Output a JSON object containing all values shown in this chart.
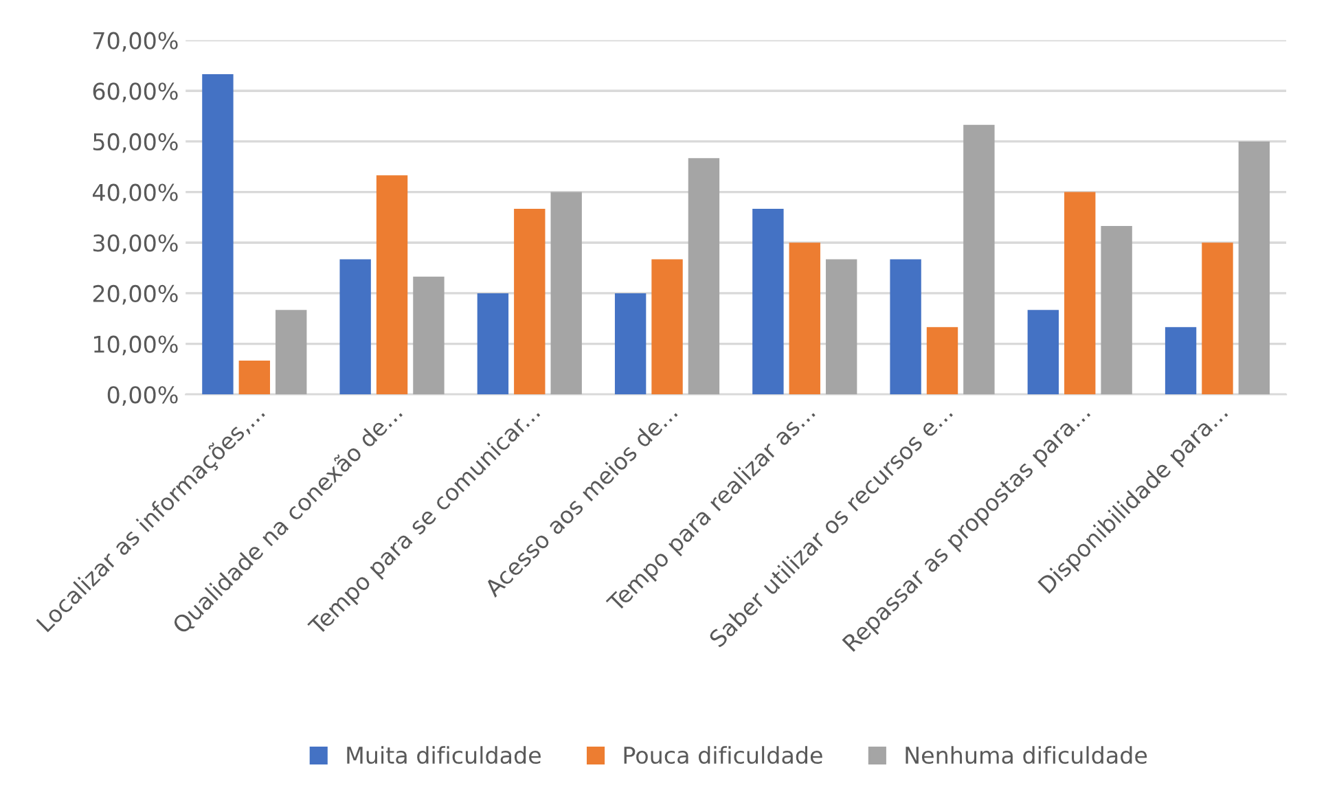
{
  "chart_data": {
    "type": "bar",
    "categories": [
      "Localizar as informações,...",
      "Qualidade na conexão de...",
      "Tempo para se comunicar...",
      "Acesso aos meios de...",
      "Tempo para realizar as...",
      "Saber utilizar os recursos e...",
      "Repassar as propostas para...",
      "Disponibilidade para..."
    ],
    "series": [
      {
        "name": "Muita dificuldade",
        "color": "#4472c4",
        "values": [
          63.3,
          26.7,
          20.0,
          20.0,
          36.7,
          26.7,
          16.7,
          13.3
        ]
      },
      {
        "name": "Pouca dificuldade",
        "color": "#ed7d31",
        "values": [
          6.7,
          43.3,
          36.7,
          26.7,
          30.0,
          13.3,
          40.0,
          30.0
        ]
      },
      {
        "name": "Nenhuma dificuldade",
        "color": "#a5a5a5",
        "values": [
          16.7,
          23.3,
          40.0,
          46.7,
          26.7,
          53.3,
          33.3,
          50.0
        ]
      }
    ],
    "ylim": [
      0,
      70
    ],
    "yticks": [
      {
        "value": 0,
        "label": "0,00%"
      },
      {
        "value": 10,
        "label": "10,00%"
      },
      {
        "value": 20,
        "label": "20,00%"
      },
      {
        "value": 30,
        "label": "30,00%"
      },
      {
        "value": 40,
        "label": "40,00%"
      },
      {
        "value": 50,
        "label": "50,00%"
      },
      {
        "value": 60,
        "label": "60,00%"
      },
      {
        "value": 70,
        "label": "70,00%"
      }
    ],
    "grid": "y",
    "legend": "bottom"
  }
}
